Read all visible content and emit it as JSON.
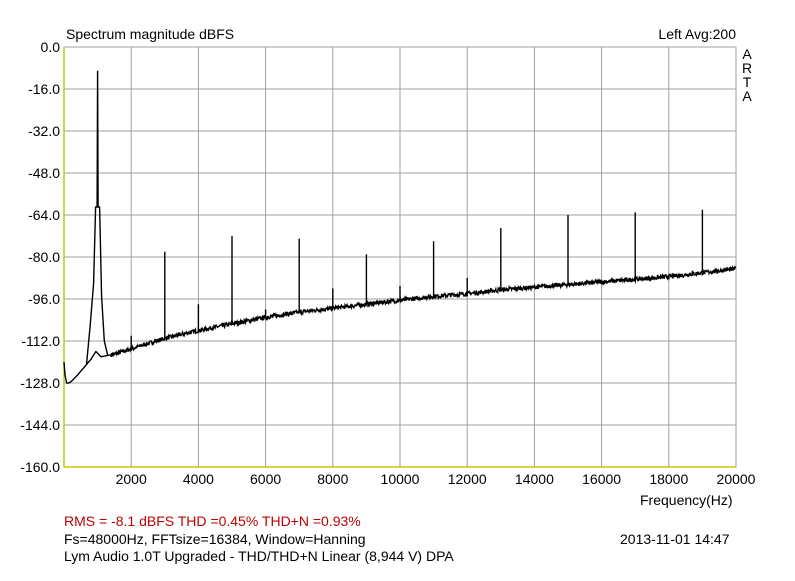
{
  "header": {
    "title": "Spectrum magnitude dBFS",
    "channel_info": "Left  Avg:200",
    "brand_letters": [
      "A",
      "R",
      "T",
      "A"
    ]
  },
  "chart_data": {
    "type": "line",
    "title": "Spectrum magnitude dBFS",
    "xlabel": "Frequency(Hz)",
    "ylabel": "",
    "xlim": [
      0,
      20000
    ],
    "ylim": [
      -160,
      0
    ],
    "x_ticks": [
      2000,
      4000,
      6000,
      8000,
      10000,
      12000,
      14000,
      16000,
      18000,
      20000
    ],
    "y_ticks": [
      0.0,
      -16.0,
      -32.0,
      -48.0,
      -64.0,
      -80.0,
      -96.0,
      -112.0,
      -128.0,
      -144.0,
      -160.0
    ],
    "y_tick_labels": [
      "0.0",
      "-16.0",
      "-32.0",
      "-48.0",
      "-64.0",
      "-80.0",
      "-96.0",
      "-112.0",
      "-128.0",
      "-144.0",
      "-160.0"
    ],
    "x_tick_labels": [
      "2000",
      "4000",
      "6000",
      "8000",
      "10000",
      "12000",
      "14000",
      "16000",
      "18000",
      "20000"
    ],
    "grid": true,
    "axis_color": "#c8c800",
    "line_color": "#000000",
    "noise_floor": {
      "x": [
        0,
        30,
        80,
        150,
        250,
        400,
        600,
        800,
        950,
        1100,
        1500,
        2000,
        2500,
        3000,
        4000,
        5000,
        6000,
        7000,
        8000,
        9000,
        10000,
        11000,
        12000,
        13000,
        14000,
        15000,
        16000,
        17000,
        18000,
        19000,
        20000
      ],
      "y": [
        -120,
        -125,
        -128,
        -128,
        -127,
        -125,
        -122,
        -119,
        -116,
        -118,
        -117,
        -115,
        -113,
        -111,
        -108,
        -105.5,
        -103,
        -101,
        -99.5,
        -98,
        -96.5,
        -95,
        -94,
        -92.5,
        -91.5,
        -90.5,
        -89.5,
        -88.5,
        -87.5,
        -86,
        -84.5
      ]
    },
    "fundamental": {
      "x": 1000,
      "y": -9,
      "skirt_y": -61
    },
    "harmonic_peaks": [
      {
        "x": 2000,
        "y": -110
      },
      {
        "x": 3000,
        "y": -78
      },
      {
        "x": 4000,
        "y": -98
      },
      {
        "x": 5000,
        "y": -72
      },
      {
        "x": 6000,
        "y": -100
      },
      {
        "x": 7000,
        "y": -73
      },
      {
        "x": 8000,
        "y": -92
      },
      {
        "x": 9000,
        "y": -79
      },
      {
        "x": 10000,
        "y": -91
      },
      {
        "x": 11000,
        "y": -74
      },
      {
        "x": 12000,
        "y": -88
      },
      {
        "x": 13000,
        "y": -69
      },
      {
        "x": 15000,
        "y": -64
      },
      {
        "x": 17000,
        "y": -63
      },
      {
        "x": 19000,
        "y": -62
      }
    ]
  },
  "footer": {
    "rms_line": "RMS =   -8.1 dBFS   THD =0.45%   THD+N =0.93%",
    "settings_line": "Fs=48000Hz, FFTsize=16384, Window=Hanning",
    "timestamp": "2013-11-01  14:47",
    "description_line": "Lym Audio 1.0T Upgraded - THD/THD+N Linear (8,944 V)     DPA"
  }
}
